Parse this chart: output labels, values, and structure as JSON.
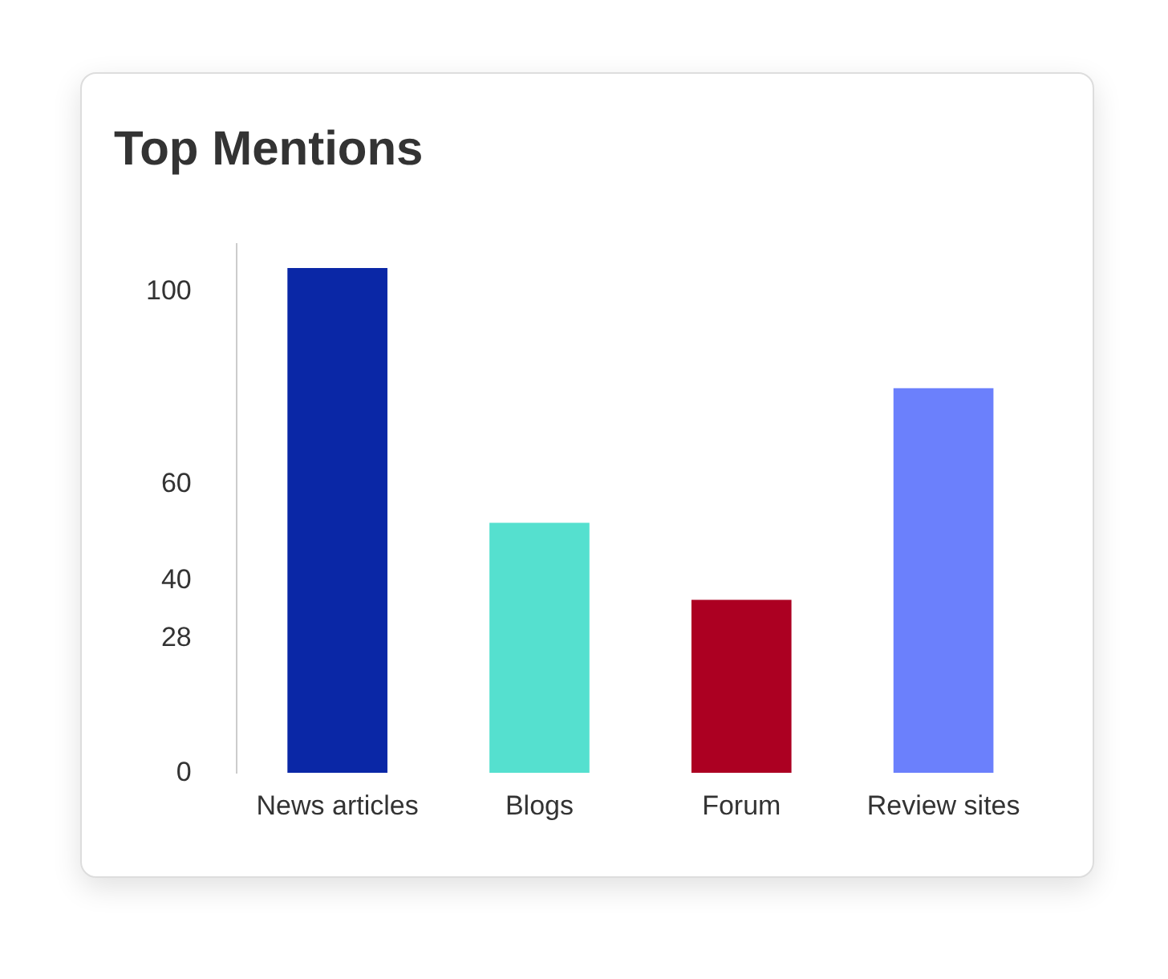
{
  "chart_data": {
    "type": "bar",
    "title": "Top Mentions",
    "categories": [
      "News articles",
      "Blogs",
      "Forum",
      "Review sites"
    ],
    "values": [
      105,
      52,
      36,
      80
    ],
    "colors": [
      "#0a27a6",
      "#55e0cf",
      "#ac0022",
      "#6b80fc"
    ],
    "ylim": [
      0,
      110
    ],
    "yticks": [
      0,
      28,
      40,
      60,
      100
    ],
    "grid": false,
    "legend": false
  }
}
